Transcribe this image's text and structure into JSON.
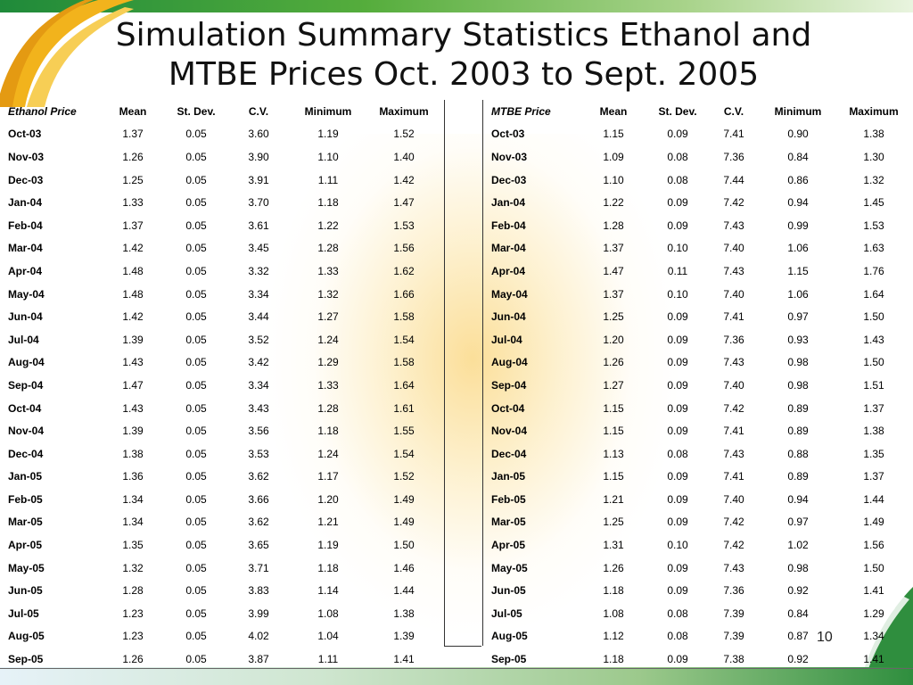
{
  "slide": {
    "title_line1": "Simulation Summary Statistics Ethanol and",
    "title_line2": "MTBE Prices Oct. 2003 to Sept. 2005",
    "page_number": "10"
  },
  "columns": [
    "Mean",
    "St. Dev.",
    "C.V.",
    "Minimum",
    "Maximum"
  ],
  "ethanol": {
    "header": "Ethanol Price",
    "rows": [
      [
        "Oct-03",
        "1.37",
        "0.05",
        "3.60",
        "1.19",
        "1.52"
      ],
      [
        "Nov-03",
        "1.26",
        "0.05",
        "3.90",
        "1.10",
        "1.40"
      ],
      [
        "Dec-03",
        "1.25",
        "0.05",
        "3.91",
        "1.11",
        "1.42"
      ],
      [
        "Jan-04",
        "1.33",
        "0.05",
        "3.70",
        "1.18",
        "1.47"
      ],
      [
        "Feb-04",
        "1.37",
        "0.05",
        "3.61",
        "1.22",
        "1.53"
      ],
      [
        "Mar-04",
        "1.42",
        "0.05",
        "3.45",
        "1.28",
        "1.56"
      ],
      [
        "Apr-04",
        "1.48",
        "0.05",
        "3.32",
        "1.33",
        "1.62"
      ],
      [
        "May-04",
        "1.48",
        "0.05",
        "3.34",
        "1.32",
        "1.66"
      ],
      [
        "Jun-04",
        "1.42",
        "0.05",
        "3.44",
        "1.27",
        "1.58"
      ],
      [
        "Jul-04",
        "1.39",
        "0.05",
        "3.52",
        "1.24",
        "1.54"
      ],
      [
        "Aug-04",
        "1.43",
        "0.05",
        "3.42",
        "1.29",
        "1.58"
      ],
      [
        "Sep-04",
        "1.47",
        "0.05",
        "3.34",
        "1.33",
        "1.64"
      ],
      [
        "Oct-04",
        "1.43",
        "0.05",
        "3.43",
        "1.28",
        "1.61"
      ],
      [
        "Nov-04",
        "1.39",
        "0.05",
        "3.56",
        "1.18",
        "1.55"
      ],
      [
        "Dec-04",
        "1.38",
        "0.05",
        "3.53",
        "1.24",
        "1.54"
      ],
      [
        "Jan-05",
        "1.36",
        "0.05",
        "3.62",
        "1.17",
        "1.52"
      ],
      [
        "Feb-05",
        "1.34",
        "0.05",
        "3.66",
        "1.20",
        "1.49"
      ],
      [
        "Mar-05",
        "1.34",
        "0.05",
        "3.62",
        "1.21",
        "1.49"
      ],
      [
        "Apr-05",
        "1.35",
        "0.05",
        "3.65",
        "1.19",
        "1.50"
      ],
      [
        "May-05",
        "1.32",
        "0.05",
        "3.71",
        "1.18",
        "1.46"
      ],
      [
        "Jun-05",
        "1.28",
        "0.05",
        "3.83",
        "1.14",
        "1.44"
      ],
      [
        "Jul-05",
        "1.23",
        "0.05",
        "3.99",
        "1.08",
        "1.38"
      ],
      [
        "Aug-05",
        "1.23",
        "0.05",
        "4.02",
        "1.04",
        "1.39"
      ],
      [
        "Sep-05",
        "1.26",
        "0.05",
        "3.87",
        "1.11",
        "1.41"
      ]
    ]
  },
  "mtbe": {
    "header": "MTBE Price",
    "rows": [
      [
        "Oct-03",
        "1.15",
        "0.09",
        "7.41",
        "0.90",
        "1.38"
      ],
      [
        "Nov-03",
        "1.09",
        "0.08",
        "7.36",
        "0.84",
        "1.30"
      ],
      [
        "Dec-03",
        "1.10",
        "0.08",
        "7.44",
        "0.86",
        "1.32"
      ],
      [
        "Jan-04",
        "1.22",
        "0.09",
        "7.42",
        "0.94",
        "1.45"
      ],
      [
        "Feb-04",
        "1.28",
        "0.09",
        "7.43",
        "0.99",
        "1.53"
      ],
      [
        "Mar-04",
        "1.37",
        "0.10",
        "7.40",
        "1.06",
        "1.63"
      ],
      [
        "Apr-04",
        "1.47",
        "0.11",
        "7.43",
        "1.15",
        "1.76"
      ],
      [
        "May-04",
        "1.37",
        "0.10",
        "7.40",
        "1.06",
        "1.64"
      ],
      [
        "Jun-04",
        "1.25",
        "0.09",
        "7.41",
        "0.97",
        "1.50"
      ],
      [
        "Jul-04",
        "1.20",
        "0.09",
        "7.36",
        "0.93",
        "1.43"
      ],
      [
        "Aug-04",
        "1.26",
        "0.09",
        "7.43",
        "0.98",
        "1.50"
      ],
      [
        "Sep-04",
        "1.27",
        "0.09",
        "7.40",
        "0.98",
        "1.51"
      ],
      [
        "Oct-04",
        "1.15",
        "0.09",
        "7.42",
        "0.89",
        "1.37"
      ],
      [
        "Nov-04",
        "1.15",
        "0.09",
        "7.41",
        "0.89",
        "1.38"
      ],
      [
        "Dec-04",
        "1.13",
        "0.08",
        "7.43",
        "0.88",
        "1.35"
      ],
      [
        "Jan-05",
        "1.15",
        "0.09",
        "7.41",
        "0.89",
        "1.37"
      ],
      [
        "Feb-05",
        "1.21",
        "0.09",
        "7.40",
        "0.94",
        "1.44"
      ],
      [
        "Mar-05",
        "1.25",
        "0.09",
        "7.42",
        "0.97",
        "1.49"
      ],
      [
        "Apr-05",
        "1.31",
        "0.10",
        "7.42",
        "1.02",
        "1.56"
      ],
      [
        "May-05",
        "1.26",
        "0.09",
        "7.43",
        "0.98",
        "1.50"
      ],
      [
        "Jun-05",
        "1.18",
        "0.09",
        "7.36",
        "0.92",
        "1.41"
      ],
      [
        "Jul-05",
        "1.08",
        "0.08",
        "7.39",
        "0.84",
        "1.29"
      ],
      [
        "Aug-05",
        "1.12",
        "0.08",
        "7.39",
        "0.87",
        "1.34"
      ],
      [
        "Sep-05",
        "1.18",
        "0.09",
        "7.38",
        "0.92",
        "1.41"
      ]
    ]
  }
}
